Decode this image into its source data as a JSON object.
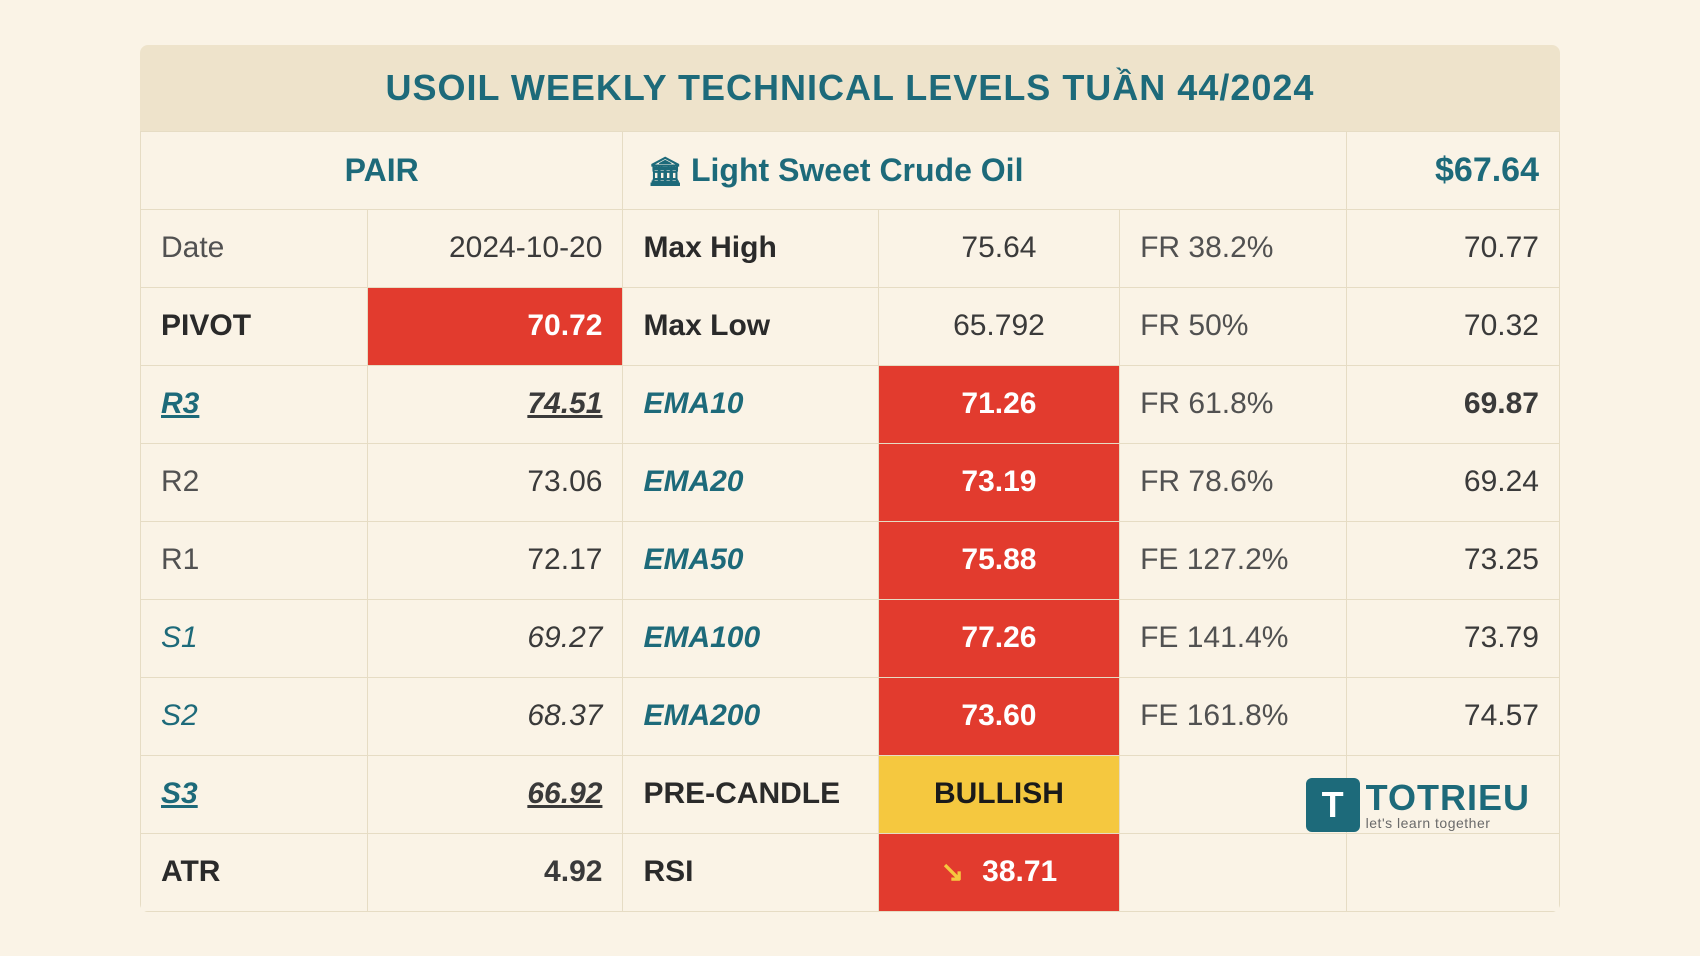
{
  "title": "USOIL WEEKLY TECHNICAL LEVELS TUẦN 44/2024",
  "colors": {
    "background": "#faf3e6",
    "header_bar": "#eee3cb",
    "teal": "#1d6a7a",
    "red": "#e23b2e",
    "yellow": "#f5c83f",
    "border": "#e6dcc4",
    "text": "#4a4a4a"
  },
  "header": {
    "pair_label": "PAIR",
    "instrument": "Light Sweet Crude Oil",
    "price": "$67.64",
    "bank_icon": "🏛"
  },
  "left": [
    {
      "label": "Date",
      "value": "2024-10-20",
      "val_red": false,
      "bold": false,
      "ital": false,
      "under": false
    },
    {
      "label": "PIVOT",
      "value": "70.72",
      "val_red": true,
      "bold": true,
      "ital": false,
      "under": false
    },
    {
      "label": "R3",
      "value": "74.51",
      "val_red": false,
      "bold": true,
      "ital": true,
      "under": true
    },
    {
      "label": "R2",
      "value": "73.06",
      "val_red": false,
      "bold": false,
      "ital": false,
      "under": false
    },
    {
      "label": "R1",
      "value": "72.17",
      "val_red": false,
      "bold": false,
      "ital": false,
      "under": false
    },
    {
      "label": "S1",
      "value": "69.27",
      "val_red": false,
      "bold": false,
      "ital": true,
      "under": false
    },
    {
      "label": "S2",
      "value": "68.37",
      "val_red": false,
      "bold": false,
      "ital": true,
      "under": false
    },
    {
      "label": "S3",
      "value": "66.92",
      "val_red": false,
      "bold": true,
      "ital": true,
      "under": true
    },
    {
      "label": "ATR",
      "value": "4.92",
      "val_red": false,
      "bold": true,
      "ital": false,
      "under": false
    }
  ],
  "mid": [
    {
      "label": "Max High",
      "value": "75.64",
      "val_red": false,
      "ital": false,
      "bold_lbl": true
    },
    {
      "label": "Max Low",
      "value": "65.792",
      "val_red": false,
      "ital": false,
      "bold_lbl": true
    },
    {
      "label": "EMA10",
      "value": "71.26",
      "val_red": true,
      "ital": true,
      "bold_lbl": false
    },
    {
      "label": "EMA20",
      "value": "73.19",
      "val_red": true,
      "ital": true,
      "bold_lbl": false
    },
    {
      "label": "EMA50",
      "value": "75.88",
      "val_red": true,
      "ital": true,
      "bold_lbl": false,
      "val_bold": true
    },
    {
      "label": "EMA100",
      "value": "77.26",
      "val_red": true,
      "ital": true,
      "bold_lbl": false
    },
    {
      "label": "EMA200",
      "value": "73.60",
      "val_red": true,
      "ital": true,
      "bold_lbl": false,
      "val_bold": true
    },
    {
      "label": "PRE-CANDLE",
      "value": "BULLISH",
      "val_red": false,
      "val_yellow": true,
      "ital": false,
      "bold_lbl": true
    },
    {
      "label": "RSI",
      "value": "38.71",
      "val_red": true,
      "ital": false,
      "bold_lbl": true,
      "arrow": "↘"
    }
  ],
  "right": [
    {
      "label": "FR 38.2%",
      "value": "70.77",
      "bold": false
    },
    {
      "label": "FR 50%",
      "value": "70.32",
      "bold": false
    },
    {
      "label": "FR 61.8%",
      "value": "69.87",
      "bold": true
    },
    {
      "label": "FR 78.6%",
      "value": "69.24",
      "bold": false
    },
    {
      "label": "FE 127.2%",
      "value": "73.25",
      "bold": false
    },
    {
      "label": "FE 141.4%",
      "value": "73.79",
      "bold": false
    },
    {
      "label": "FE 161.8%",
      "value": "74.57",
      "bold": false
    },
    {
      "label": "",
      "value": "",
      "bold": false
    },
    {
      "label": "",
      "value": "",
      "bold": false
    }
  ],
  "logo": {
    "mark": "T",
    "text": "TOTRIEU",
    "tagline": "let's learn together"
  }
}
